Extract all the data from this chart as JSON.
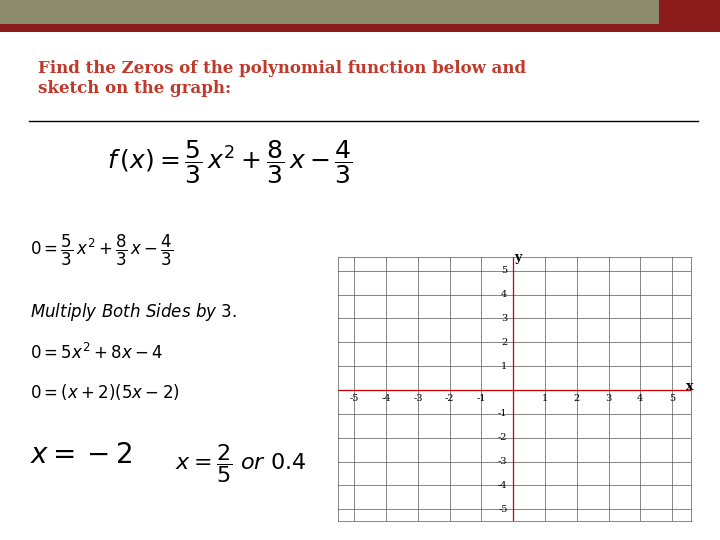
{
  "title_text": "Find the Zeros of the polynomial function below and\nsketch on the graph:",
  "title_color": "#C0392B",
  "header_bar_color1": "#8B8B6B",
  "header_bar_color2": "#8B1A1A",
  "bg_color": "#FFFFFF",
  "grid_color": "#555555",
  "axis_color": "#CC0000",
  "grid_xlim": [
    -5,
    5
  ],
  "grid_ylim": [
    -5,
    5
  ],
  "font_size_title": 12,
  "grid_tick_fontsize": 7,
  "grid_label_fontsize": 9
}
